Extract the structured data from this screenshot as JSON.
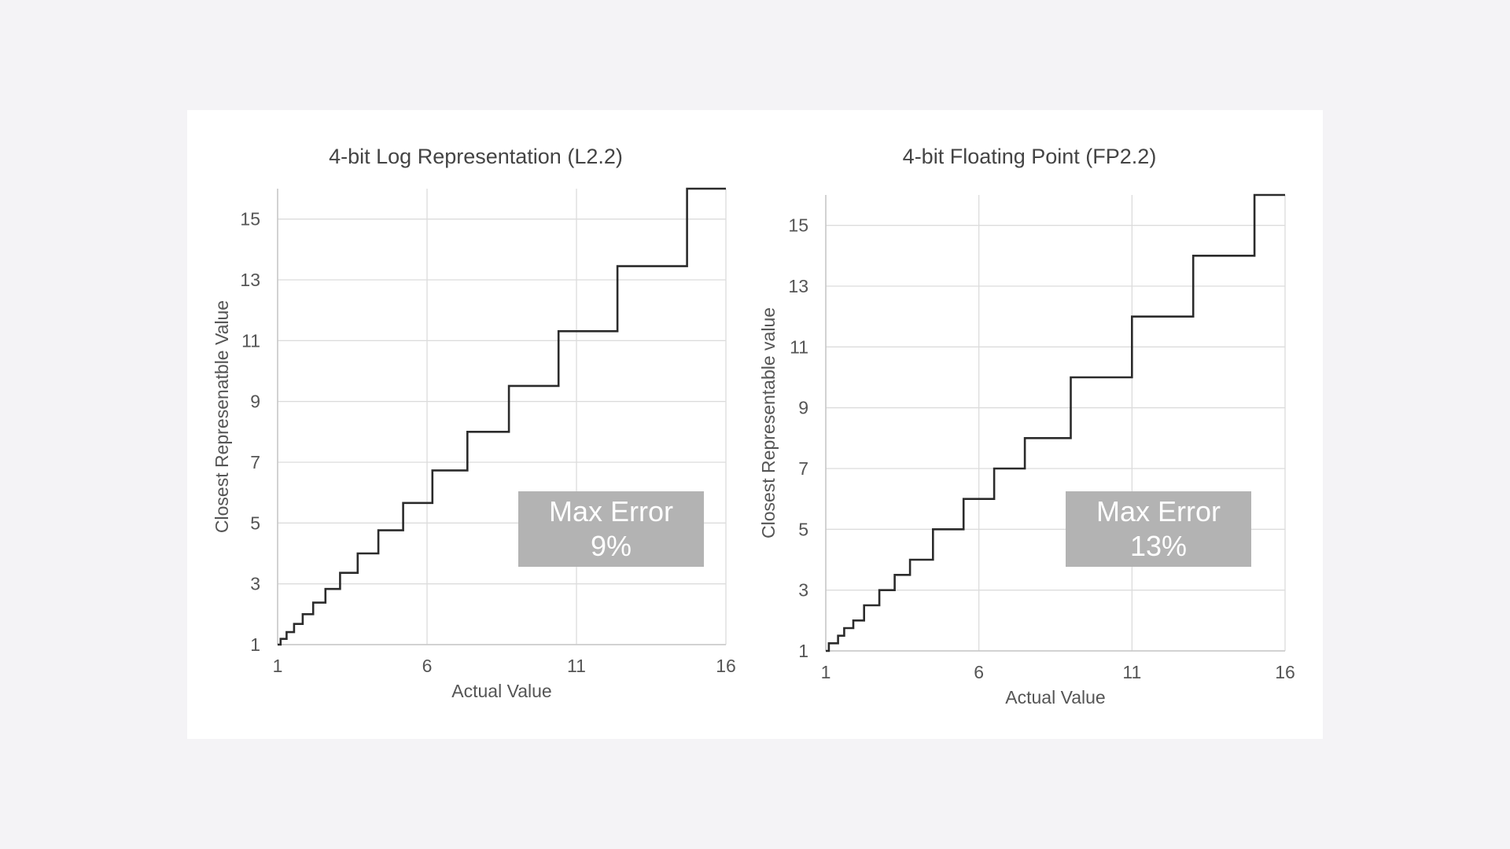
{
  "chart_data": [
    {
      "type": "line",
      "title": "4-bit Log Representation (L2.2)",
      "xlabel": "Actual Value",
      "ylabel": "Closest Represenatble Value",
      "xlim": [
        1,
        16
      ],
      "ylim": [
        1,
        16
      ],
      "x_ticks": [
        "1",
        "6",
        "11",
        "16"
      ],
      "y_ticks": [
        "1",
        "3",
        "5",
        "7",
        "9",
        "11",
        "13",
        "15"
      ],
      "grid": true,
      "annotation": {
        "line1": "Max Error",
        "line2": "9%"
      },
      "series": [
        {
          "step": true,
          "levels": [
            1.0,
            1.19,
            1.41,
            1.68,
            2.0,
            2.38,
            2.83,
            3.36,
            4.0,
            4.76,
            5.66,
            6.73,
            8.0,
            9.51,
            11.31,
            13.45,
            16.0
          ],
          "thresholds": [
            1.1,
            1.3,
            1.55,
            1.84,
            2.19,
            2.6,
            3.09,
            3.68,
            4.37,
            5.2,
            6.18,
            7.35,
            8.74,
            10.4,
            12.37,
            14.7
          ]
        }
      ]
    },
    {
      "type": "line",
      "title": "4-bit Floating Point (FP2.2)",
      "xlabel": "Actual Value",
      "ylabel": "Closest Representable value",
      "xlim": [
        1,
        16
      ],
      "ylim": [
        1,
        16
      ],
      "x_ticks": [
        "1",
        "6",
        "11",
        "16"
      ],
      "y_ticks": [
        "1",
        "3",
        "5",
        "7",
        "9",
        "11",
        "13",
        "15"
      ],
      "grid": true,
      "annotation": {
        "line1": "Max Error",
        "line2": "13%"
      },
      "series": [
        {
          "step": true,
          "levels": [
            1.0,
            1.25,
            1.5,
            1.75,
            2.0,
            2.5,
            3.0,
            3.5,
            4.0,
            5.0,
            6.0,
            7.0,
            8.0,
            10.0,
            12.0,
            14.0,
            16.0
          ],
          "thresholds": [
            1.1,
            1.4,
            1.6,
            1.9,
            2.25,
            2.75,
            3.25,
            3.75,
            4.5,
            5.5,
            6.5,
            7.5,
            9.0,
            11.0,
            13.0,
            15.0
          ]
        }
      ]
    }
  ]
}
